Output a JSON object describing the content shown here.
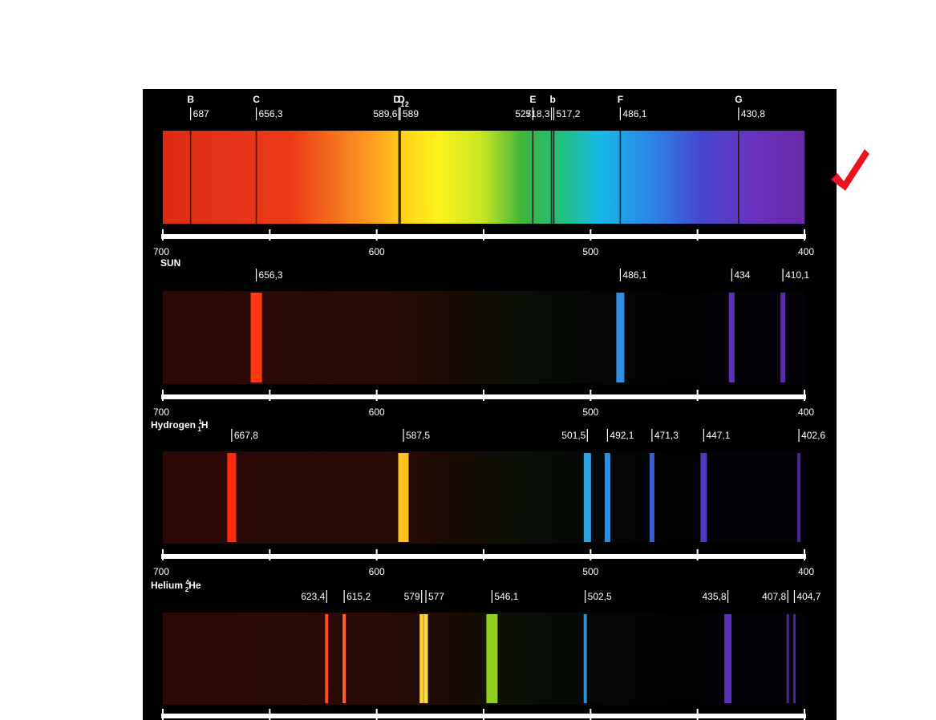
{
  "scale_ticks": [
    "700",
    "600",
    "500",
    "400"
  ],
  "sun": {
    "name": "SUN",
    "letters": [
      {
        "text": "B",
        "wl": 687
      },
      {
        "text": "C",
        "wl": 656.3
      },
      {
        "text": "D",
        "sub": "1",
        "wl": 589.6
      },
      {
        "text": "D",
        "sub": "2",
        "wl": 587.5
      },
      {
        "text": "E",
        "wl": 527
      },
      {
        "text": "b",
        "wl": 517.7
      },
      {
        "text": "F",
        "wl": 486.1
      },
      {
        "text": "G",
        "wl": 430.8
      }
    ],
    "lines": [
      {
        "wl": 687,
        "label": "687",
        "side": "r"
      },
      {
        "wl": 656.3,
        "label": "656,3",
        "side": "r"
      },
      {
        "wl": 589.6,
        "label": "589,6",
        "side": "l"
      },
      {
        "wl": 589,
        "label": "589",
        "side": "r"
      },
      {
        "wl": 527,
        "label": "527",
        "side": "l"
      },
      {
        "wl": 518.3,
        "label": "518,3",
        "side": "l"
      },
      {
        "wl": 517.2,
        "label": "517,2",
        "side": "r"
      },
      {
        "wl": 486.1,
        "label": "486,1",
        "side": "r"
      },
      {
        "wl": 430.8,
        "label": "430,8",
        "side": "r"
      }
    ]
  },
  "hydrogen": {
    "name": "Hydrogen",
    "isotope": {
      "mass": "1",
      "atomic": "1",
      "symbol": "H"
    },
    "lines": [
      {
        "wl": 656.3,
        "label": "656,3",
        "side": "r",
        "color": "#ff3a12",
        "width": 14
      },
      {
        "wl": 486.1,
        "label": "486,1",
        "side": "r",
        "color": "#2f8fe6",
        "width": 10
      },
      {
        "wl": 434,
        "label": "434",
        "side": "r",
        "color": "#5a30b8",
        "width": 7
      },
      {
        "wl": 410.1,
        "label": "410,1",
        "side": "r",
        "color": "#5a2ca8",
        "width": 6
      }
    ]
  },
  "helium": {
    "name": "Helium",
    "isotope": {
      "mass": "4",
      "atomic": "2",
      "symbol": "He"
    },
    "lines": [
      {
        "wl": 667.8,
        "label": "667,8",
        "side": "r",
        "color": "#ff2a10",
        "width": 11
      },
      {
        "wl": 587.5,
        "label": "587,5",
        "side": "r",
        "color": "#ffc020",
        "width": 13
      },
      {
        "wl": 501.5,
        "label": "501,5",
        "side": "l",
        "color": "#2fa3e0",
        "width": 9
      },
      {
        "wl": 492.1,
        "label": "492,1",
        "side": "r",
        "color": "#2f8fe0",
        "width": 7
      },
      {
        "wl": 471.3,
        "label": "471,3",
        "side": "r",
        "color": "#3a5fd0",
        "width": 6
      },
      {
        "wl": 447.1,
        "label": "447,1",
        "side": "r",
        "color": "#5236c0",
        "width": 8
      },
      {
        "wl": 402.6,
        "label": "402,6",
        "side": "r",
        "color": "#4a2a90",
        "width": 4
      }
    ]
  },
  "neon": {
    "lines": [
      {
        "wl": 623.4,
        "label": "623,4",
        "side": "l",
        "color": "#ff4a20",
        "width": 4
      },
      {
        "wl": 615.2,
        "label": "615,2",
        "side": "r",
        "color": "#ff6030",
        "width": 4
      },
      {
        "wl": 579,
        "label": "579",
        "side": "l",
        "color": "#ffd020",
        "width": 5
      },
      {
        "wl": 577,
        "label": "577",
        "side": "r",
        "color": "#ffd84a",
        "width": 5
      },
      {
        "wl": 546.1,
        "label": "546,1",
        "side": "r",
        "color": "#90d020",
        "width": 14
      },
      {
        "wl": 502.5,
        "label": "502,5",
        "side": "r",
        "color": "#2f8fd0",
        "width": 4
      },
      {
        "wl": 435.8,
        "label": "435,8",
        "side": "l",
        "color": "#5a30b8",
        "width": 9
      },
      {
        "wl": 407.8,
        "label": "407,8",
        "side": "l",
        "color": "#4a2a90",
        "width": 3
      },
      {
        "wl": 404.7,
        "label": "404,7",
        "side": "r",
        "color": "#4a2a90",
        "width": 3
      }
    ]
  },
  "colors": {
    "background": "#000000",
    "scale_bar": "#ffffff",
    "emission_background": "#2a0704",
    "checkmark": "#e8141e"
  }
}
